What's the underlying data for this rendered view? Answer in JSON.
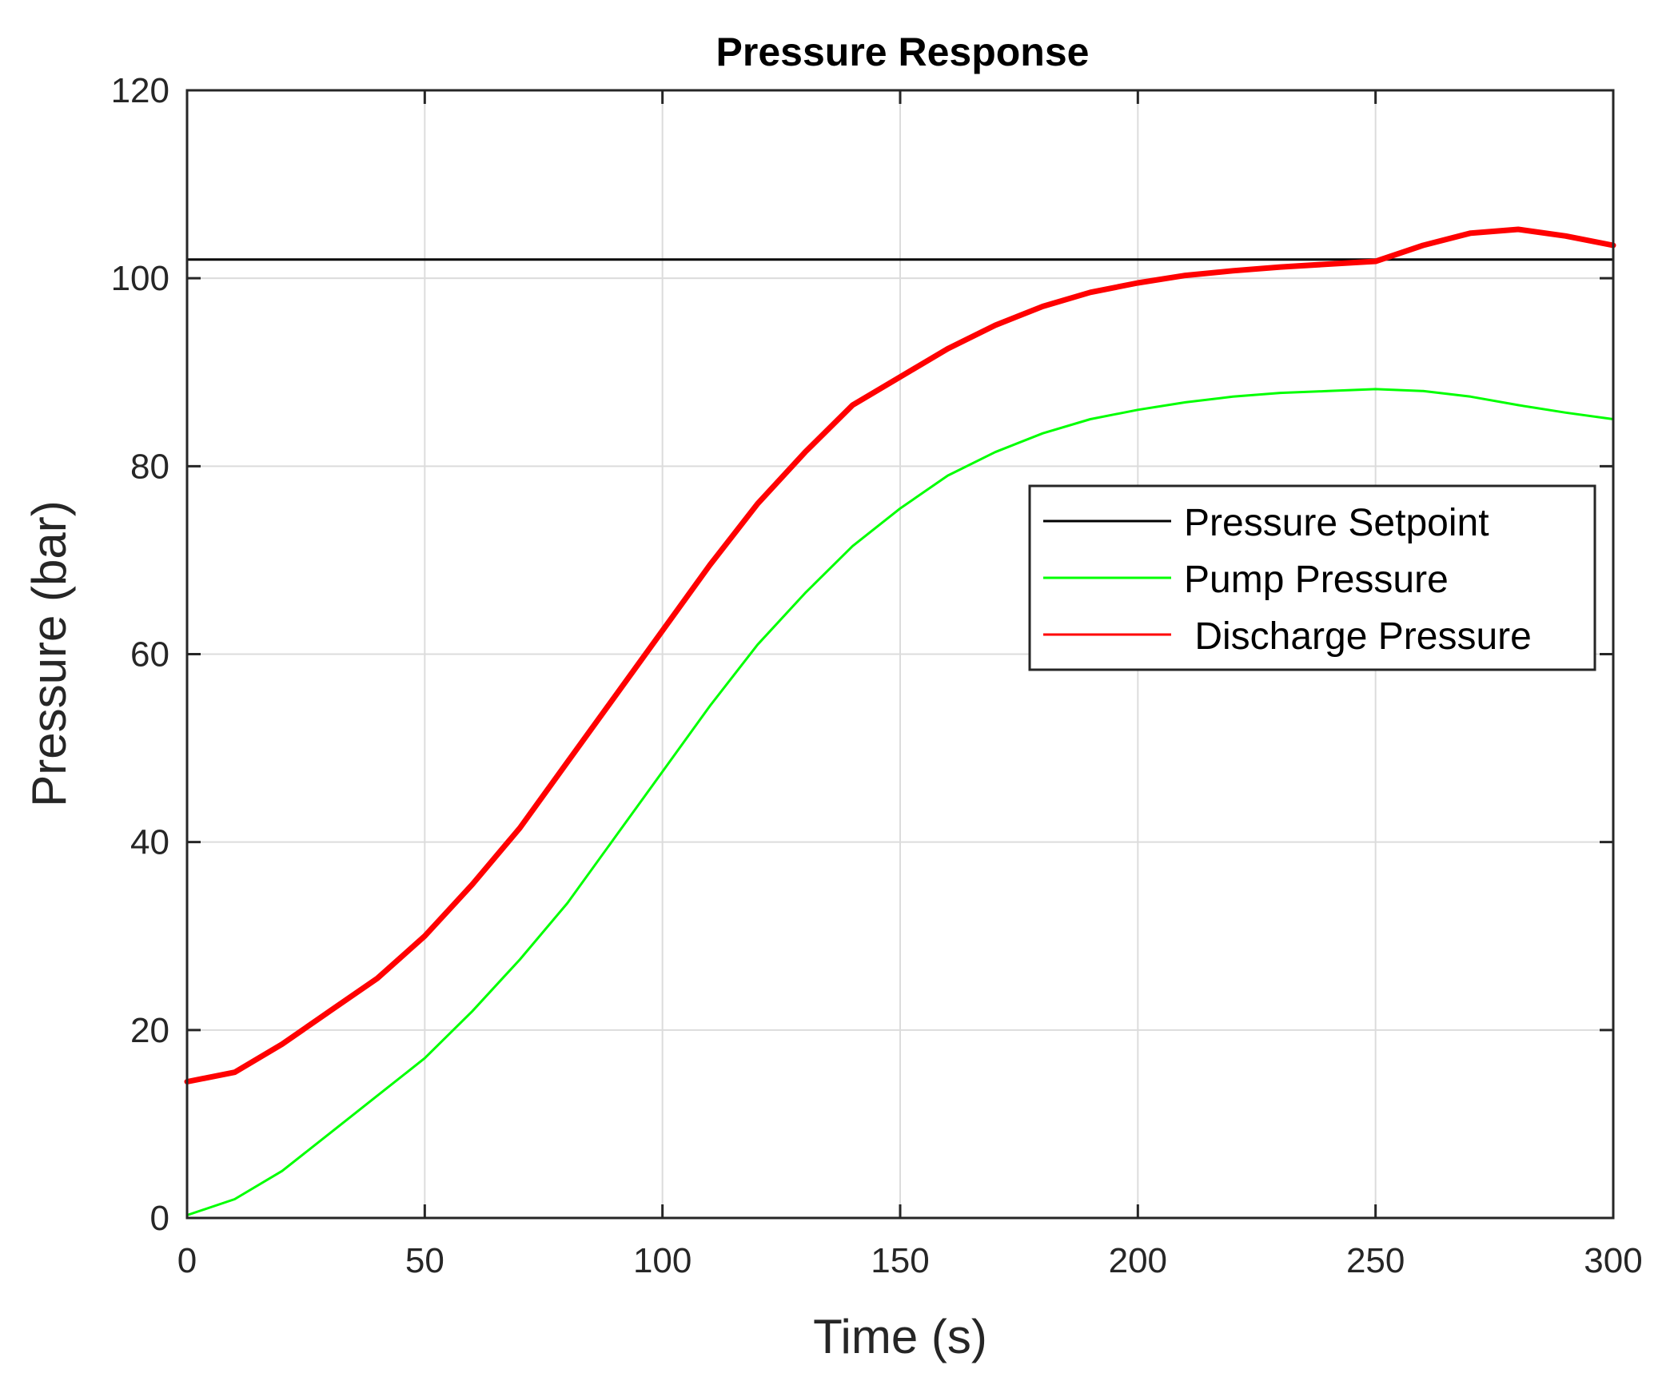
{
  "chart_data": {
    "type": "line",
    "title": "Pressure Response",
    "xlabel": "Time (s)",
    "ylabel": "Pressure (bar)",
    "xlim": [
      0,
      300
    ],
    "ylim": [
      0,
      120
    ],
    "grid": true,
    "x_ticks": [
      0,
      50,
      100,
      150,
      200,
      250,
      300
    ],
    "y_ticks": [
      0,
      20,
      40,
      60,
      80,
      100,
      120
    ],
    "x_tick_labels": [
      "0",
      "50",
      "100",
      "150",
      "200",
      "250",
      "300"
    ],
    "y_tick_labels": [
      "0",
      "20",
      "40",
      "60",
      "80",
      "100",
      "120"
    ],
    "legend_position": "right-middle",
    "series": [
      {
        "name": "Pressure Setpoint",
        "color": "#000000",
        "x": [
          0,
          300
        ],
        "y": [
          102,
          102
        ]
      },
      {
        "name": "Pump Pressure",
        "color": "#00ff00",
        "x": [
          0,
          10,
          20,
          30,
          40,
          50,
          60,
          70,
          80,
          90,
          100,
          110,
          120,
          130,
          140,
          150,
          160,
          170,
          180,
          190,
          200,
          210,
          220,
          230,
          240,
          250,
          260,
          270,
          280,
          290,
          300
        ],
        "y": [
          0.3,
          2,
          5,
          9,
          13,
          17,
          22,
          27.5,
          33.5,
          40.5,
          47.5,
          54.5,
          61,
          66.5,
          71.5,
          75.5,
          79,
          81.5,
          83.5,
          85,
          86,
          86.8,
          87.4,
          87.8,
          88,
          88.2,
          88,
          87.4,
          86.5,
          85.7,
          85
        ]
      },
      {
        "name": " Discharge Pressure",
        "color": "#ff0000",
        "x": [
          0,
          10,
          20,
          30,
          40,
          50,
          60,
          70,
          80,
          90,
          100,
          110,
          120,
          130,
          140,
          150,
          160,
          170,
          180,
          190,
          200,
          210,
          220,
          230,
          240,
          250,
          260,
          270,
          280,
          290,
          300
        ],
        "y": [
          14.5,
          15.5,
          18.5,
          22,
          25.5,
          30,
          35.5,
          41.5,
          48.5,
          55.5,
          62.5,
          69.5,
          76,
          81.5,
          86.5,
          89.5,
          92.5,
          95,
          97,
          98.5,
          99.5,
          100.3,
          100.8,
          101.2,
          101.5,
          101.8,
          103.5,
          104.8,
          105.2,
          104.5,
          103.5
        ]
      }
    ]
  }
}
